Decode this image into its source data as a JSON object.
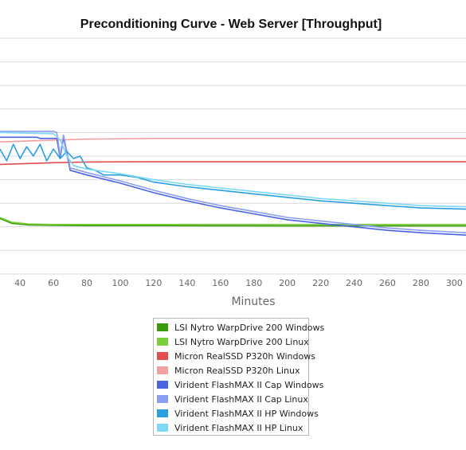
{
  "chart_data": {
    "type": "line",
    "title": "Preconditioning Curve - Web Server [Throughput]",
    "xlabel": "Minutes",
    "ylabel": "",
    "x_ticks": [
      40,
      60,
      80,
      100,
      120,
      140,
      160,
      180,
      200,
      220,
      240,
      260,
      280,
      300
    ],
    "xlim": [
      28,
      307
    ],
    "ylim": [
      0,
      100
    ],
    "grid": true,
    "legend_position": "bottom",
    "series": [
      {
        "name": "LSI Nytro WarpDrive 200 Windows",
        "color": "#3a9a0e",
        "x": [
          28,
          35,
          45,
          60,
          80,
          120,
          200,
          307
        ],
        "y": [
          23.5,
          21.5,
          20.8,
          20.6,
          20.5,
          20.5,
          20.4,
          20.4
        ]
      },
      {
        "name": "LSI Nytro WarpDrive 200 Linux",
        "color": "#7ccf3c",
        "x": [
          28,
          35,
          45,
          60,
          80,
          120,
          200,
          307
        ],
        "y": [
          24,
          22,
          21.2,
          21,
          21,
          21,
          21,
          21
        ]
      },
      {
        "name": "Micron RealSSD P320h Windows",
        "color": "#e24d4d",
        "x": [
          28,
          60,
          80,
          120,
          200,
          307
        ],
        "y": [
          46.5,
          47.2,
          47.5,
          47.6,
          47.6,
          47.6
        ]
      },
      {
        "name": "Micron RealSSD P320h Linux",
        "color": "#f2a0a0",
        "x": [
          28,
          60,
          80,
          120,
          200,
          307
        ],
        "y": [
          56,
          56.8,
          57.2,
          57.5,
          57.5,
          57.5
        ]
      },
      {
        "name": "Virident FlashMAX II Cap Windows",
        "color": "#4a63e0",
        "x": [
          28,
          50,
          52,
          62,
          64,
          66,
          68,
          70,
          80,
          100,
          120,
          140,
          160,
          180,
          200,
          220,
          240,
          260,
          280,
          307
        ],
        "y": [
          58,
          58,
          57.5,
          57.5,
          49,
          58,
          51,
          44,
          42,
          38.5,
          34.5,
          31,
          28,
          25.5,
          23,
          21.5,
          20,
          18.5,
          17.5,
          16.5
        ]
      },
      {
        "name": "Virident FlashMAX II Cap Linux",
        "color": "#8a9ef2",
        "x": [
          28,
          60,
          62,
          64,
          66,
          68,
          70,
          80,
          100,
          120,
          140,
          160,
          180,
          200,
          220,
          240,
          260,
          280,
          307
        ],
        "y": [
          60.5,
          60.5,
          60,
          50,
          59,
          52,
          45,
          43,
          39.5,
          35.5,
          32,
          29,
          26.5,
          24,
          22.5,
          21,
          19.5,
          18.5,
          17.5
        ]
      },
      {
        "name": "Virident FlashMAX II HP Windows",
        "color": "#2a9fe0",
        "x": [
          28,
          32,
          36,
          40,
          44,
          48,
          52,
          56,
          60,
          64,
          68,
          72,
          76,
          80,
          85,
          90,
          100,
          110,
          120,
          140,
          160,
          180,
          200,
          220,
          240,
          260,
          280,
          307
        ],
        "y": [
          53,
          48,
          55,
          49,
          54,
          50,
          55,
          48,
          53,
          49,
          52,
          49,
          50,
          45,
          44,
          42,
          42,
          41,
          39,
          37,
          35.5,
          34,
          32.5,
          31,
          30,
          29,
          28,
          27.5
        ]
      },
      {
        "name": "Virident FlashMAX II HP Linux",
        "color": "#7dd8f7",
        "x": [
          28,
          60,
          64,
          68,
          72,
          80,
          90,
          100,
          120,
          140,
          160,
          180,
          200,
          220,
          240,
          260,
          280,
          307
        ],
        "y": [
          60,
          59.5,
          57,
          50,
          46,
          44.5,
          43.5,
          42.5,
          40,
          38,
          36.5,
          35,
          33.5,
          32,
          31,
          30,
          29,
          28.5
        ]
      }
    ]
  }
}
